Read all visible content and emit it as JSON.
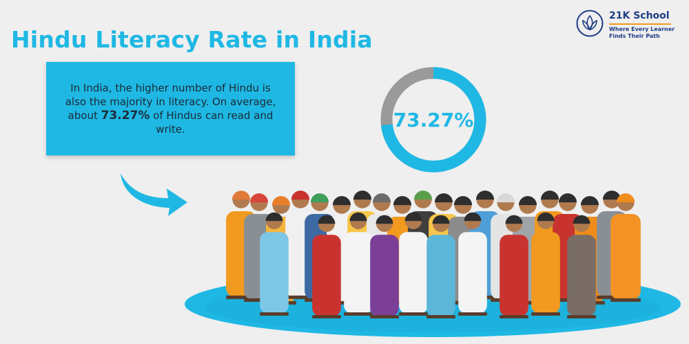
{
  "title": "Hindu Literacy Rate in India",
  "logo": {
    "name": "21K School",
    "tagline_line1": "Where Every Learner",
    "tagline_line2": "Finds Their Path",
    "icon": "lotus-icon"
  },
  "info": {
    "text_before": "In India, the higher number of Hindu is also the majority in literacy. On average, about ",
    "highlight": "73.27%",
    "text_after": " of Hindus can read and write."
  },
  "stat": {
    "label": "73.27%",
    "value_percent": 73.27
  },
  "colors": {
    "accent": "#1fb8e4",
    "donut_track": "#9a9a9a",
    "background": "#efefef",
    "logo_text": "#1d3b84",
    "logo_line": "#f39a1e"
  },
  "illustration": "crowd-of-indian-people-illustration"
}
